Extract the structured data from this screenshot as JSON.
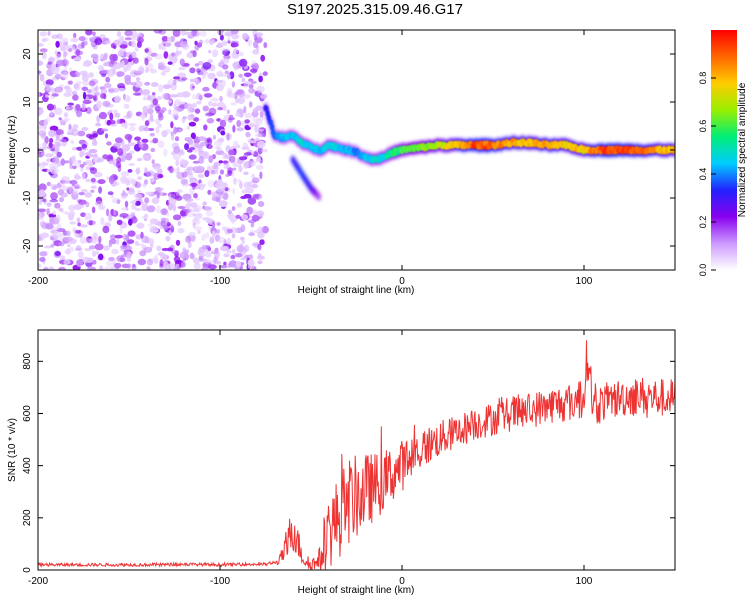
{
  "figure": {
    "title": "S197.2025.315.09.46.G17"
  },
  "chart_data": [
    {
      "type": "heatmap",
      "panel": "top",
      "xlabel": "Height of straight line (km)",
      "ylabel": "Frequency (Hz)",
      "xlim": [
        -200,
        150
      ],
      "ylim": [
        -25,
        25
      ],
      "xticks": [
        -200,
        -100,
        0,
        100
      ],
      "yticks": [
        -20,
        -10,
        0,
        10,
        20
      ],
      "colorbar": {
        "label": "Normalized spectral amplitude",
        "range": [
          0.0,
          1.0
        ],
        "ticks": [
          "0.0",
          "0.2",
          "0.4",
          "0.6",
          "0.8"
        ],
        "colors": [
          "#ffffff",
          "#cc99ff",
          "#8800ee",
          "#2222ff",
          "#00ccff",
          "#00ee77",
          "#99ee00",
          "#ffcc00",
          "#ff6600",
          "#ff0000"
        ]
      },
      "noise_region": {
        "x_range": [
          -200,
          -75
        ],
        "y_range": [
          -25,
          25
        ],
        "amplitude": [
          0.05,
          0.25
        ]
      },
      "ridge": {
        "x": [
          -75,
          -70,
          -65,
          -60,
          -55,
          -50,
          -45,
          -40,
          -35,
          -30,
          -25,
          -20,
          -15,
          -10,
          -5,
          0,
          10,
          20,
          30,
          40,
          50,
          60,
          70,
          80,
          90,
          100,
          110,
          120,
          130,
          140,
          150
        ],
        "y": [
          9,
          3,
          2.5,
          3,
          1.5,
          0.5,
          0,
          1,
          0.5,
          0,
          -0.5,
          -1.5,
          -2,
          -1.5,
          -0.5,
          0,
          0.5,
          1,
          1,
          1,
          1,
          1.5,
          1.5,
          1,
          1,
          0,
          0,
          0,
          0,
          0,
          0
        ],
        "amplitude": [
          0.3,
          0.4,
          0.45,
          0.45,
          0.5,
          0.45,
          0.45,
          0.5,
          0.45,
          0.45,
          0.4,
          0.45,
          0.5,
          0.5,
          0.55,
          0.6,
          0.65,
          0.7,
          0.8,
          0.95,
          0.9,
          0.85,
          0.8,
          0.85,
          0.8,
          0.8,
          0.95,
          0.95,
          0.9,
          0.85,
          0.8
        ]
      },
      "secondary_branch": {
        "x": [
          -60,
          -55,
          -50,
          -45
        ],
        "y": [
          -2,
          -5,
          -8,
          -10
        ],
        "amplitude": [
          0.3,
          0.35,
          0.3,
          0.15
        ]
      }
    },
    {
      "type": "line",
      "panel": "bottom",
      "xlabel": "Height of straight line (km)",
      "ylabel": "SNR (10 * v/v)",
      "xlim": [
        -200,
        150
      ],
      "ylim": [
        0,
        920
      ],
      "xticks": [
        -200,
        -100,
        0,
        100
      ],
      "yticks": [
        0,
        200,
        400,
        600,
        800
      ],
      "series": [
        {
          "name": "SNR",
          "color": "#ee3333",
          "x": [
            -200,
            -180,
            -160,
            -140,
            -120,
            -100,
            -85,
            -75,
            -68,
            -63,
            -60,
            -57,
            -54,
            -50,
            -45,
            -40,
            -35,
            -30,
            -25,
            -20,
            -15,
            -10,
            -5,
            0,
            5,
            10,
            15,
            20,
            30,
            40,
            50,
            60,
            70,
            80,
            90,
            95,
            100,
            102,
            105,
            110,
            120,
            130,
            140,
            150
          ],
          "values": [
            20,
            20,
            20,
            20,
            22,
            20,
            22,
            22,
            30,
            90,
            180,
            100,
            40,
            20,
            40,
            150,
            200,
            260,
            280,
            300,
            320,
            340,
            370,
            400,
            430,
            460,
            480,
            500,
            530,
            560,
            580,
            600,
            610,
            630,
            640,
            650,
            660,
            850,
            620,
            640,
            660,
            670,
            660,
            660
          ],
          "noise_amplitude": [
            6,
            6,
            6,
            6,
            6,
            6,
            6,
            6,
            10,
            60,
            110,
            60,
            30,
            20,
            50,
            150,
            160,
            170,
            160,
            150,
            130,
            120,
            110,
            100,
            90,
            80,
            75,
            70,
            65,
            65,
            65,
            70,
            70,
            70,
            75,
            80,
            85,
            100,
            80,
            75,
            75,
            75,
            75,
            75
          ]
        }
      ]
    }
  ]
}
